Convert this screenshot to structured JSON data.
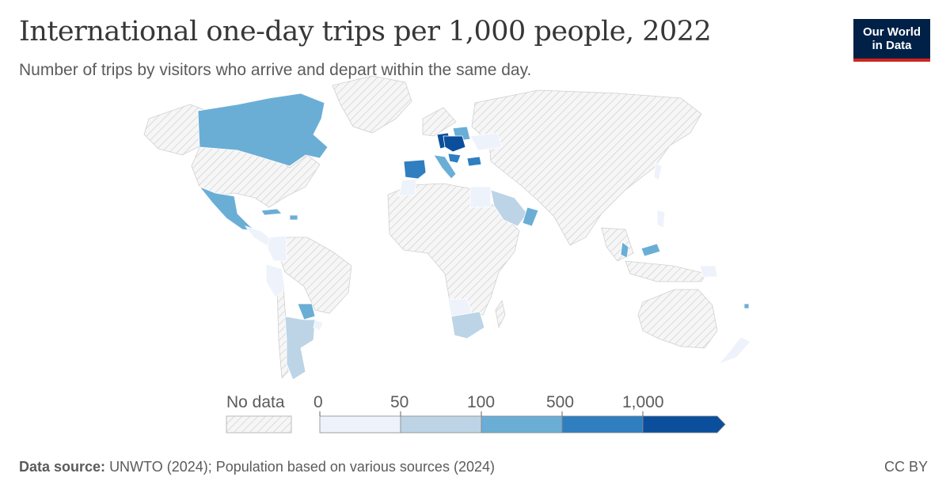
{
  "header": {
    "title": "International one-day trips per 1,000 people, 2022",
    "subtitle": "Number of trips by visitors who arrive and depart within the same day.",
    "logo_line1": "Our World",
    "logo_line2": "in Data"
  },
  "legend": {
    "no_data_label": "No data",
    "bins": [
      "0",
      "50",
      "100",
      "500",
      "1,000"
    ],
    "colors": [
      "#eef2fb",
      "#bcd4e6",
      "#6aaed6",
      "#2f7ec0",
      "#0b4f9c"
    ],
    "no_data_color": "hatched-grey"
  },
  "footer": {
    "source_label": "Data source:",
    "source_text": "UNWTO (2024); Population based on various sources (2024)",
    "license": "CC BY"
  },
  "map_data": {
    "type": "choropleth",
    "countries": [
      {
        "name": "Canada",
        "bin": 2
      },
      {
        "name": "Mexico",
        "bin": 2
      },
      {
        "name": "Cuba",
        "bin": 2
      },
      {
        "name": "Dominican Republic",
        "bin": 2
      },
      {
        "name": "Colombia",
        "bin": 0
      },
      {
        "name": "Peru",
        "bin": 0
      },
      {
        "name": "Argentina",
        "bin": 1
      },
      {
        "name": "Paraguay",
        "bin": 2
      },
      {
        "name": "Uruguay",
        "bin": 0
      },
      {
        "name": "Spain",
        "bin": 3
      },
      {
        "name": "Germany",
        "bin": 4
      },
      {
        "name": "Czechia",
        "bin": 4
      },
      {
        "name": "Hungary",
        "bin": 4
      },
      {
        "name": "Poland",
        "bin": 2
      },
      {
        "name": "Italy",
        "bin": 2
      },
      {
        "name": "Croatia",
        "bin": 3
      },
      {
        "name": "Bulgaria",
        "bin": 3
      },
      {
        "name": "Ukraine",
        "bin": 0
      },
      {
        "name": "Morocco",
        "bin": 0
      },
      {
        "name": "Egypt",
        "bin": 0
      },
      {
        "name": "Saudi Arabia",
        "bin": 1
      },
      {
        "name": "Oman",
        "bin": 2
      },
      {
        "name": "South Africa",
        "bin": 1
      },
      {
        "name": "Zimbabwe",
        "bin": 0
      },
      {
        "name": "Malaysia",
        "bin": 2
      },
      {
        "name": "Philippines",
        "bin": 0
      },
      {
        "name": "Japan",
        "bin": 0
      },
      {
        "name": "New Zealand",
        "bin": 0
      },
      {
        "name": "Fiji",
        "bin": 2
      }
    ]
  }
}
